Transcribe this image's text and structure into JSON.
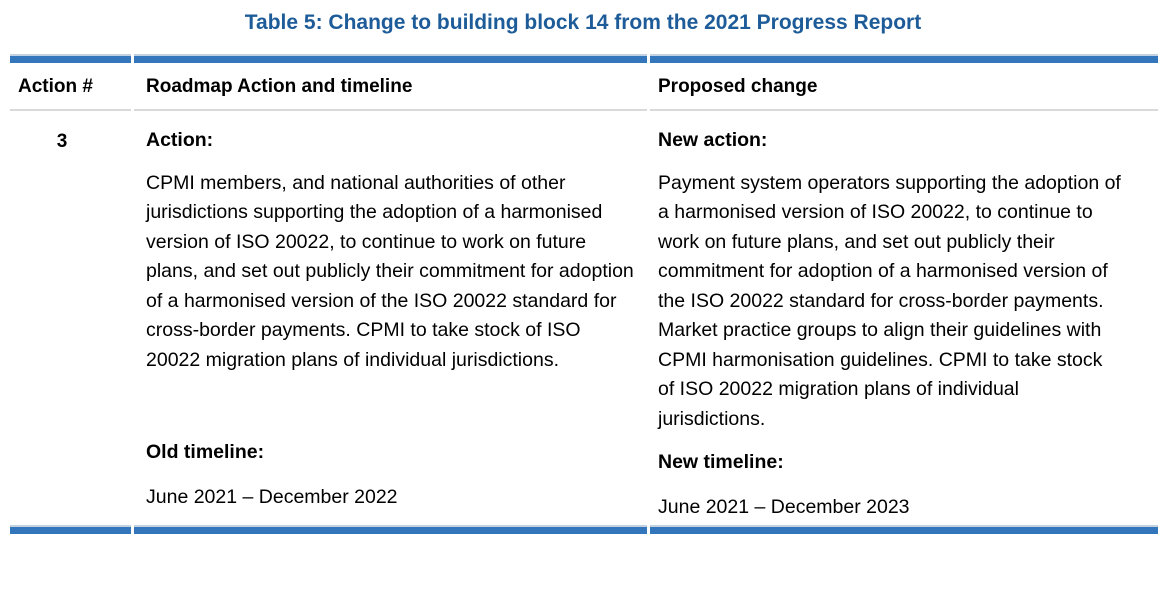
{
  "title": "Table 5: Change to building block 14 from the 2021 Progress Report",
  "colors": {
    "title-color": "#1D5C99",
    "bar-color": "#3476BC",
    "bar-edge-color": "#C2D2E2",
    "rule-color": "#D9D9D9",
    "text-color": "#000000",
    "page-bg": "#FFFFFF"
  },
  "table": {
    "headers": [
      "Action #",
      "Roadmap Action and timeline",
      "Proposed change"
    ],
    "row": {
      "action_number": "3",
      "roadmap": {
        "action_label": "Action:",
        "action_text": "CPMI members, and national authorities of other jurisdictions supporting the adoption of a harmonised version of ISO 20022, to continue to work on future plans, and set out publicly their commitment for adoption of a harmonised version of the ISO 20022 standard for cross-border payments. CPMI to take stock of ISO 20022 migration plans of individual jurisdictions.",
        "timeline_label": "Old timeline:",
        "timeline_value": "June 2021 – December 2022"
      },
      "proposed": {
        "action_label": "New action:",
        "action_text": "Payment system operators supporting the adoption of a harmonised version of ISO 20022, to continue to work on future plans, and set out publicly their commitment for adoption of a harmonised version of the ISO 20022 standard for cross-border payments. Market practice groups to align their guidelines with CPMI harmonisation guidelines. CPMI to take stock of ISO 20022 migration plans of individual jurisdictions.",
        "timeline_label": "New timeline:",
        "timeline_value": "June 2021 – December 2023"
      }
    }
  }
}
